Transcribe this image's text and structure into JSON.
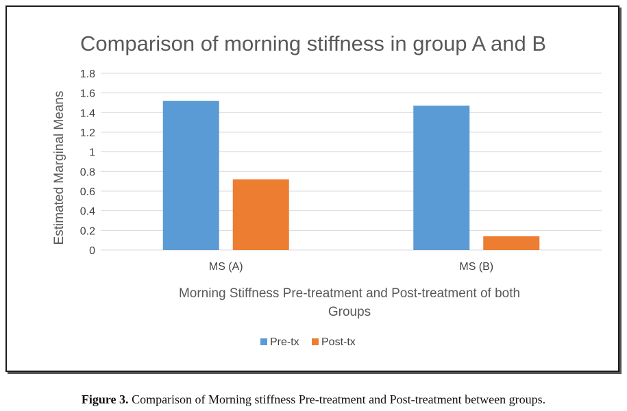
{
  "chart_data": {
    "type": "bar",
    "title": "Comparison of morning stiffness in group A and B",
    "xlabel": "Morning Stiffness Pre-treatment and Post-treatment of both Groups",
    "xlabel_lines": [
      "Morning Stiffness Pre-treatment and Post-treatment of both",
      "Groups"
    ],
    "ylabel": "Estimated Marginal Means",
    "categories": [
      "MS (A)",
      "MS (B)"
    ],
    "series": [
      {
        "name": "Pre-tx",
        "values": [
          1.52,
          1.47
        ],
        "color": "#5b9bd5"
      },
      {
        "name": "Post-tx",
        "values": [
          0.72,
          0.14
        ],
        "color": "#ed7d31"
      }
    ],
    "ylim": [
      0,
      1.8
    ],
    "yticks": [
      0,
      0.2,
      0.4,
      0.6,
      0.8,
      1,
      1.2,
      1.4,
      1.6,
      1.8
    ],
    "ytick_labels": [
      "0",
      "0.2",
      "0.4",
      "0.6",
      "0.8",
      "1",
      "1.2",
      "1.4",
      "1.6",
      "1.8"
    ],
    "grid": true,
    "legend_position": "bottom"
  },
  "caption": {
    "label": "Figure 3.",
    "text": " Comparison of Morning stiffness Pre-treatment and Post-treatment between groups."
  }
}
